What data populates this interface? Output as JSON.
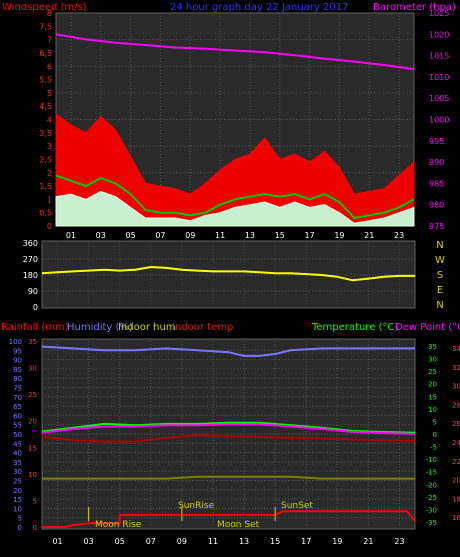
{
  "chart_data": [
    {
      "type": "line",
      "title": "24 hour graph day  22 January 2017",
      "ylabel_left": "Windspeed (m/s)",
      "ylabel_right": "Barometer (hpa)",
      "x_ticks": [
        "01",
        "03",
        "05",
        "07",
        "09",
        "11",
        "13",
        "15",
        "17",
        "19",
        "21",
        "23"
      ],
      "left_ticks": [
        "0",
        "0,5",
        "1",
        "1,5",
        "2",
        "2,5",
        "3",
        "3,5",
        "4",
        "4,5",
        "5",
        "5,5",
        "6",
        "6,5",
        "7",
        "7,5",
        "8"
      ],
      "right_ticks": [
        "975",
        "980",
        "985",
        "990",
        "995",
        "1000",
        "1005",
        "1010",
        "1015",
        "1020",
        "1025"
      ],
      "ylim_left": [
        0,
        8
      ],
      "ylim_right": [
        975,
        1025
      ],
      "grid": true,
      "series": [
        {
          "key": "barometer",
          "axis": "right",
          "color": "#ff00ff",
          "x": [
            0,
            2,
            4,
            6,
            8,
            10,
            12,
            14,
            16,
            18,
            20,
            22,
            24
          ],
          "y": [
            1020.0,
            1018.8,
            1018.0,
            1017.5,
            1016.9,
            1016.6,
            1016.2,
            1015.8,
            1015.1,
            1014.3,
            1013.6,
            1012.8,
            1011.8
          ]
        },
        {
          "key": "gust",
          "axis": "left",
          "color": "#ff0000",
          "x": [
            0,
            1,
            2,
            3,
            4,
            5,
            6,
            7,
            8,
            9,
            10,
            11,
            12,
            13,
            14,
            15,
            16,
            17,
            18,
            19,
            20,
            21,
            22,
            23,
            24
          ],
          "y": [
            4.2,
            3.8,
            3.5,
            4.1,
            3.6,
            2.6,
            1.6,
            1.5,
            1.4,
            1.2,
            1.6,
            2.1,
            2.5,
            2.7,
            3.3,
            2.5,
            2.7,
            2.4,
            2.8,
            2.2,
            1.2,
            1.3,
            1.4,
            1.9,
            2.4
          ]
        },
        {
          "key": "average",
          "axis": "left",
          "color": "#00cc00",
          "x": [
            0,
            1,
            2,
            3,
            4,
            5,
            6,
            7,
            8,
            9,
            10,
            11,
            12,
            13,
            14,
            15,
            16,
            17,
            18,
            19,
            20,
            21,
            22,
            23,
            24
          ],
          "y": [
            1.9,
            1.7,
            1.5,
            1.8,
            1.6,
            1.2,
            0.6,
            0.5,
            0.5,
            0.4,
            0.5,
            0.8,
            1.0,
            1.1,
            1.2,
            1.1,
            1.2,
            1.0,
            1.2,
            0.9,
            0.3,
            0.4,
            0.5,
            0.7,
            1.0
          ]
        },
        {
          "key": "speed",
          "axis": "left",
          "color": "#ccffdd",
          "x": [
            0,
            1,
            2,
            3,
            4,
            5,
            6,
            7,
            8,
            9,
            10,
            11,
            12,
            13,
            14,
            15,
            16,
            17,
            18,
            19,
            20,
            21,
            22,
            23,
            24
          ],
          "y": [
            1.1,
            1.2,
            1.0,
            1.3,
            1.1,
            0.7,
            0.3,
            0.3,
            0.3,
            0.2,
            0.4,
            0.5,
            0.7,
            0.8,
            0.9,
            0.7,
            0.9,
            0.7,
            0.8,
            0.5,
            0.1,
            0.2,
            0.3,
            0.5,
            0.7
          ]
        }
      ]
    },
    {
      "type": "line",
      "ylabel_right_labels": [
        "N",
        "W",
        "S",
        "E",
        "N"
      ],
      "ticks_left": [
        "360",
        "270",
        "180",
        "90",
        "0"
      ],
      "ylim": [
        0,
        360
      ],
      "series": [
        {
          "key": "wind_direction",
          "color": "#ffff00",
          "x": [
            0,
            1,
            2,
            3,
            4,
            5,
            6,
            7,
            8,
            9,
            10,
            11,
            12,
            13,
            14,
            15,
            16,
            17,
            18,
            19,
            20,
            21,
            22,
            23,
            24
          ],
          "y": [
            190,
            195,
            200,
            205,
            210,
            205,
            210,
            225,
            220,
            210,
            205,
            200,
            200,
            200,
            195,
            190,
            190,
            185,
            180,
            170,
            150,
            160,
            170,
            175,
            175
          ]
        }
      ]
    },
    {
      "type": "line",
      "labels": {
        "rain": "Rainfall (mm)",
        "hum": "Humidity (%)",
        "inhum": "Indoor hum",
        "intemp": "Indoor temp",
        "temp": "Temperature (°C)",
        "dew": "Dew Point (°C)"
      },
      "left_ticks": [
        "0",
        "5",
        "10",
        "15",
        "20",
        "25",
        "30",
        "35",
        "40",
        "45",
        "50",
        "55",
        "60",
        "65",
        "70",
        "75",
        "80",
        "85",
        "90",
        "95",
        "100"
      ],
      "rain_ticks": [
        "0",
        "5",
        "10",
        "15",
        "20",
        "25",
        "30",
        "35"
      ],
      "temp_ticks": [
        "35",
        "30",
        "25",
        "20",
        "15",
        "10",
        "5",
        "0",
        "-5",
        "-10",
        "-15",
        "-20",
        "-25",
        "-30",
        "-35"
      ],
      "dew_ticks": [
        "34",
        "32",
        "30",
        "28",
        "26",
        "24",
        "22",
        "20",
        "18",
        "16"
      ],
      "ylim_left": [
        0,
        100
      ],
      "ylim_temp": [
        -37,
        37
      ],
      "annotations": {
        "moonrise": "Moon Rise",
        "moonset": "Moon Set",
        "sunrise": "SunRise",
        "sunset": "SunSet"
      },
      "series": [
        {
          "key": "humidity",
          "axis": "left",
          "color": "#7777ff",
          "x": [
            0,
            2,
            4,
            6,
            8,
            10,
            12,
            13,
            14,
            15,
            16,
            18,
            20,
            22,
            24
          ],
          "y": [
            97,
            96,
            95,
            95,
            96,
            95,
            94,
            92,
            92,
            93,
            95,
            96,
            96,
            96,
            96
          ]
        },
        {
          "key": "temperature",
          "axis": "temp",
          "color": "#00ff00",
          "x": [
            0,
            2,
            4,
            6,
            8,
            10,
            12,
            14,
            16,
            18,
            20,
            22,
            24
          ],
          "y": [
            1,
            2.5,
            4,
            3.5,
            4,
            4,
            4.5,
            4.5,
            3.5,
            2.5,
            1.2,
            0.8,
            0.5
          ]
        },
        {
          "key": "dew_point",
          "axis": "temp",
          "color": "#ff00ff",
          "x": [
            0,
            2,
            4,
            6,
            8,
            10,
            12,
            14,
            16,
            18,
            20,
            22,
            24
          ],
          "y": [
            0.5,
            2,
            3,
            3,
            3.5,
            3.5,
            3.8,
            3.8,
            3,
            2,
            0.8,
            0.4,
            0
          ]
        },
        {
          "key": "indoor_temp",
          "axis": "temp",
          "color": "#aa0000",
          "x": [
            0,
            2,
            4,
            6,
            8,
            10,
            12,
            14,
            16,
            18,
            20,
            22,
            24
          ],
          "y": [
            -1,
            -2.5,
            -3,
            -3,
            -1.5,
            -0.5,
            -0.8,
            -1.2,
            -1.5,
            -1.8,
            -2.2,
            -2.5,
            -2.8
          ]
        },
        {
          "key": "indoor_hum",
          "axis": "left",
          "color": "#808000",
          "x": [
            0,
            2,
            4,
            6,
            8,
            10,
            12,
            14,
            16,
            18,
            20,
            22,
            24
          ],
          "y": [
            26,
            26,
            26,
            26,
            26,
            27,
            27,
            27,
            27,
            26,
            26,
            26,
            26
          ]
        },
        {
          "key": "rainfall",
          "axis": "left",
          "color": "#ff0000",
          "x": [
            0,
            1.5,
            2,
            3,
            5,
            5,
            8,
            14,
            15,
            15.5,
            22,
            23.5,
            24
          ],
          "y": [
            0,
            0,
            1,
            2,
            2,
            6.5,
            6.5,
            6.5,
            6.5,
            8.5,
            8.5,
            8.5,
            3
          ]
        }
      ]
    }
  ]
}
